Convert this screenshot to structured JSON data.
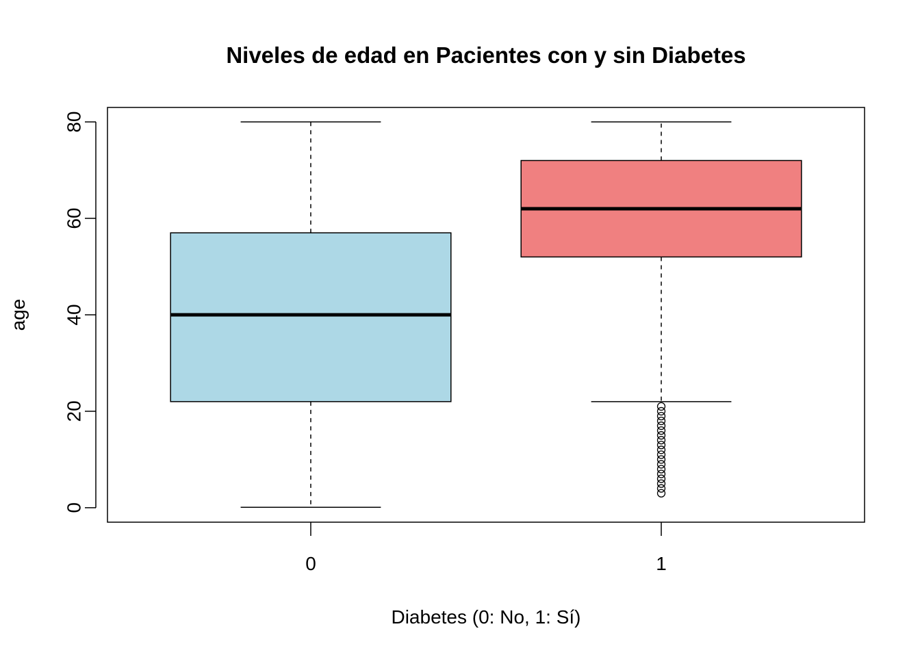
{
  "chart_data": {
    "type": "boxplot",
    "title": "Niveles de edad en Pacientes con y sin Diabetes",
    "xlabel": "Diabetes (0: No, 1: Sí)",
    "ylabel": "age",
    "ylim": [
      -3,
      83
    ],
    "yticks": [
      0,
      20,
      40,
      60,
      80
    ],
    "categories": [
      "0",
      "1"
    ],
    "grid": false,
    "boxes": [
      {
        "category": "0",
        "color": "#ADD8E6",
        "whisker_low": 0.08,
        "q1": 22,
        "median": 40,
        "q3": 57,
        "whisker_high": 80,
        "outliers": []
      },
      {
        "category": "1",
        "color": "#F08080",
        "whisker_low": 22,
        "q1": 52,
        "median": 62,
        "q3": 72,
        "whisker_high": 80,
        "outliers": [
          3,
          4,
          5,
          6,
          7,
          8,
          9,
          10,
          11,
          12,
          13,
          14,
          15,
          16,
          17,
          18,
          19,
          20,
          21
        ]
      }
    ]
  }
}
